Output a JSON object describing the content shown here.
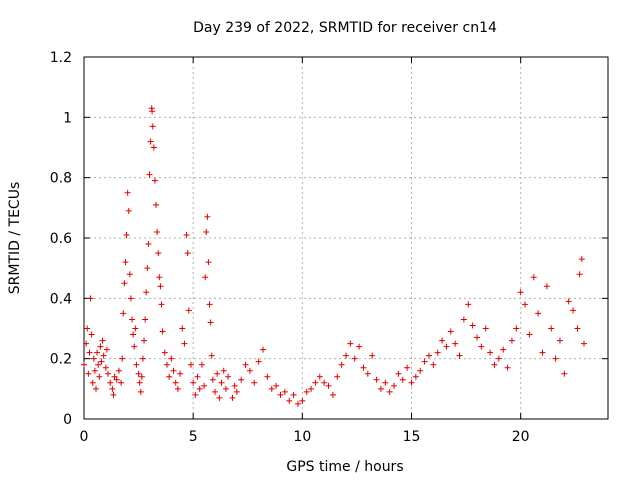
{
  "chart_data": {
    "type": "scatter",
    "title": "Day 239 of 2022, SRMTID for receiver cn14",
    "xlabel": "GPS time / hours",
    "ylabel": "SRMTID / TECUs",
    "xlim": [
      0,
      24
    ],
    "ylim": [
      0,
      1.2
    ],
    "grid": true,
    "marker": "plus",
    "color": "#e00000",
    "x_ticks": [
      0,
      5,
      10,
      15,
      20
    ],
    "x_tick_labels": [
      "0",
      "5",
      "10",
      "15",
      "20"
    ],
    "y_ticks": [
      0,
      0.2,
      0.4,
      0.6,
      0.8,
      1.0,
      1.2
    ],
    "y_tick_labels": [
      "0",
      "0.2",
      "0.4",
      "0.6",
      "0.8",
      "1",
      "1.2"
    ],
    "series": [
      {
        "name": "SRMTID",
        "points": [
          [
            0.0,
            0.18
          ],
          [
            0.1,
            0.25
          ],
          [
            0.15,
            0.3
          ],
          [
            0.2,
            0.15
          ],
          [
            0.25,
            0.22
          ],
          [
            0.3,
            0.4
          ],
          [
            0.35,
            0.28
          ],
          [
            0.4,
            0.12
          ],
          [
            0.45,
            0.2
          ],
          [
            0.5,
            0.16
          ],
          [
            0.55,
            0.1
          ],
          [
            0.6,
            0.22
          ],
          [
            0.65,
            0.18
          ],
          [
            0.7,
            0.14
          ],
          [
            0.75,
            0.24
          ],
          [
            0.8,
            0.19
          ],
          [
            0.85,
            0.26
          ],
          [
            0.9,
            0.21
          ],
          [
            1.0,
            0.17
          ],
          [
            1.05,
            0.23
          ],
          [
            1.1,
            0.15
          ],
          [
            1.2,
            0.12
          ],
          [
            1.3,
            0.1
          ],
          [
            1.35,
            0.08
          ],
          [
            1.4,
            0.14
          ],
          [
            1.5,
            0.13
          ],
          [
            1.6,
            0.16
          ],
          [
            1.7,
            0.12
          ],
          [
            1.75,
            0.2
          ],
          [
            1.8,
            0.35
          ],
          [
            1.85,
            0.45
          ],
          [
            1.9,
            0.52
          ],
          [
            1.95,
            0.61
          ],
          [
            2.0,
            0.75
          ],
          [
            2.05,
            0.69
          ],
          [
            2.1,
            0.48
          ],
          [
            2.15,
            0.4
          ],
          [
            2.2,
            0.33
          ],
          [
            2.25,
            0.28
          ],
          [
            2.3,
            0.24
          ],
          [
            2.35,
            0.3
          ],
          [
            2.4,
            0.18
          ],
          [
            2.5,
            0.15
          ],
          [
            2.55,
            0.12
          ],
          [
            2.6,
            0.09
          ],
          [
            2.65,
            0.14
          ],
          [
            2.7,
            0.2
          ],
          [
            2.75,
            0.26
          ],
          [
            2.8,
            0.33
          ],
          [
            2.85,
            0.42
          ],
          [
            2.9,
            0.5
          ],
          [
            2.95,
            0.58
          ],
          [
            3.0,
            0.81
          ],
          [
            3.05,
            0.92
          ],
          [
            3.1,
            1.03
          ],
          [
            3.12,
            1.02
          ],
          [
            3.15,
            0.97
          ],
          [
            3.2,
            0.9
          ],
          [
            3.25,
            0.79
          ],
          [
            3.3,
            0.71
          ],
          [
            3.35,
            0.62
          ],
          [
            3.4,
            0.55
          ],
          [
            3.45,
            0.47
          ],
          [
            3.5,
            0.44
          ],
          [
            3.55,
            0.38
          ],
          [
            3.6,
            0.29
          ],
          [
            3.7,
            0.22
          ],
          [
            3.8,
            0.18
          ],
          [
            3.9,
            0.14
          ],
          [
            4.0,
            0.2
          ],
          [
            4.1,
            0.16
          ],
          [
            4.2,
            0.12
          ],
          [
            4.3,
            0.1
          ],
          [
            4.4,
            0.15
          ],
          [
            4.5,
            0.3
          ],
          [
            4.6,
            0.25
          ],
          [
            4.7,
            0.61
          ],
          [
            4.75,
            0.55
          ],
          [
            4.8,
            0.36
          ],
          [
            4.9,
            0.18
          ],
          [
            5.0,
            0.12
          ],
          [
            5.1,
            0.08
          ],
          [
            5.2,
            0.14
          ],
          [
            5.3,
            0.1
          ],
          [
            5.4,
            0.18
          ],
          [
            5.5,
            0.11
          ],
          [
            5.55,
            0.47
          ],
          [
            5.6,
            0.62
          ],
          [
            5.65,
            0.67
          ],
          [
            5.7,
            0.52
          ],
          [
            5.75,
            0.38
          ],
          [
            5.8,
            0.32
          ],
          [
            5.85,
            0.21
          ],
          [
            5.9,
            0.13
          ],
          [
            6.0,
            0.09
          ],
          [
            6.1,
            0.15
          ],
          [
            6.2,
            0.07
          ],
          [
            6.3,
            0.12
          ],
          [
            6.4,
            0.16
          ],
          [
            6.5,
            0.1
          ],
          [
            6.6,
            0.14
          ],
          [
            6.8,
            0.07
          ],
          [
            6.9,
            0.11
          ],
          [
            7.0,
            0.09
          ],
          [
            7.2,
            0.13
          ],
          [
            7.4,
            0.18
          ],
          [
            7.6,
            0.16
          ],
          [
            7.8,
            0.12
          ],
          [
            8.0,
            0.19
          ],
          [
            8.2,
            0.23
          ],
          [
            8.4,
            0.14
          ],
          [
            8.6,
            0.1
          ],
          [
            8.8,
            0.11
          ],
          [
            9.0,
            0.08
          ],
          [
            9.2,
            0.09
          ],
          [
            9.4,
            0.06
          ],
          [
            9.6,
            0.08
          ],
          [
            9.8,
            0.05
          ],
          [
            10.0,
            0.06
          ],
          [
            10.2,
            0.09
          ],
          [
            10.4,
            0.1
          ],
          [
            10.6,
            0.12
          ],
          [
            10.8,
            0.14
          ],
          [
            11.0,
            0.12
          ],
          [
            11.2,
            0.11
          ],
          [
            11.4,
            0.08
          ],
          [
            11.6,
            0.14
          ],
          [
            11.8,
            0.18
          ],
          [
            12.0,
            0.21
          ],
          [
            12.2,
            0.25
          ],
          [
            12.4,
            0.2
          ],
          [
            12.6,
            0.24
          ],
          [
            12.8,
            0.17
          ],
          [
            13.0,
            0.15
          ],
          [
            13.2,
            0.21
          ],
          [
            13.4,
            0.13
          ],
          [
            13.6,
            0.1
          ],
          [
            13.8,
            0.12
          ],
          [
            14.0,
            0.09
          ],
          [
            14.2,
            0.11
          ],
          [
            14.4,
            0.15
          ],
          [
            14.6,
            0.13
          ],
          [
            14.8,
            0.17
          ],
          [
            15.0,
            0.12
          ],
          [
            15.2,
            0.14
          ],
          [
            15.4,
            0.16
          ],
          [
            15.6,
            0.19
          ],
          [
            15.8,
            0.21
          ],
          [
            16.0,
            0.18
          ],
          [
            16.2,
            0.22
          ],
          [
            16.4,
            0.26
          ],
          [
            16.6,
            0.24
          ],
          [
            16.8,
            0.29
          ],
          [
            17.0,
            0.25
          ],
          [
            17.2,
            0.21
          ],
          [
            17.4,
            0.33
          ],
          [
            17.6,
            0.38
          ],
          [
            17.8,
            0.31
          ],
          [
            18.0,
            0.27
          ],
          [
            18.2,
            0.24
          ],
          [
            18.4,
            0.3
          ],
          [
            18.6,
            0.22
          ],
          [
            18.8,
            0.18
          ],
          [
            19.0,
            0.2
          ],
          [
            19.2,
            0.23
          ],
          [
            19.4,
            0.17
          ],
          [
            19.6,
            0.26
          ],
          [
            19.8,
            0.3
          ],
          [
            20.0,
            0.42
          ],
          [
            20.2,
            0.38
          ],
          [
            20.4,
            0.28
          ],
          [
            20.6,
            0.47
          ],
          [
            20.8,
            0.35
          ],
          [
            21.0,
            0.22
          ],
          [
            21.2,
            0.44
          ],
          [
            21.4,
            0.3
          ],
          [
            21.6,
            0.2
          ],
          [
            21.8,
            0.26
          ],
          [
            22.0,
            0.15
          ],
          [
            22.2,
            0.39
          ],
          [
            22.4,
            0.36
          ],
          [
            22.6,
            0.3
          ],
          [
            22.7,
            0.48
          ],
          [
            22.8,
            0.53
          ],
          [
            22.9,
            0.25
          ]
        ]
      }
    ]
  }
}
